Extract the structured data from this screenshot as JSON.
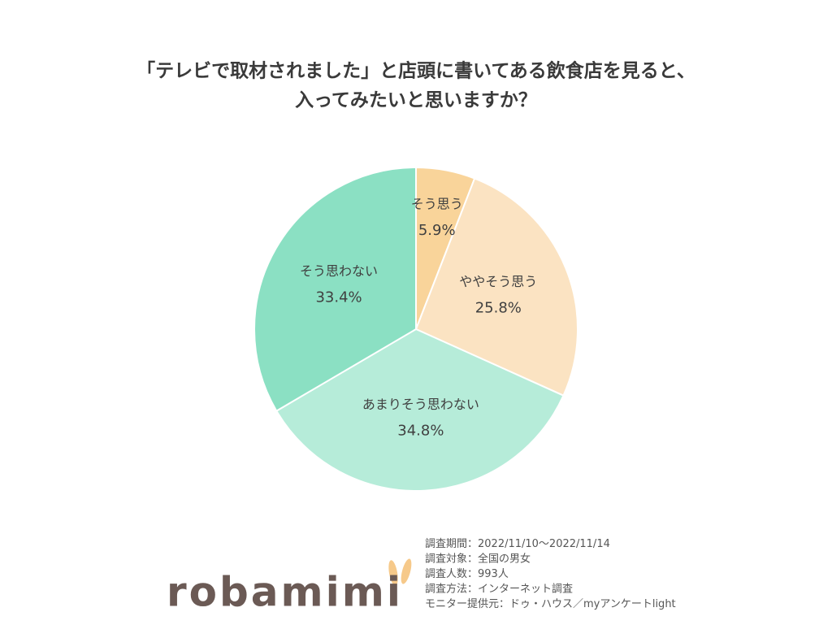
{
  "chart_data": {
    "type": "pie",
    "title": [
      "「テレビで取材されました」と店頭に書いてある飲食店を見ると、",
      "入ってみたいと思いますか？"
    ],
    "categories": [
      "そう思う",
      "ややそう思う",
      "あまりそう思わない",
      "そう思わない"
    ],
    "values": [
      5.9,
      25.8,
      34.8,
      33.4
    ],
    "value_labels": [
      "5.9%",
      "25.8%",
      "34.8%",
      "33.4%"
    ],
    "colors": [
      "#f9d49a",
      "#fbe3c2",
      "#b6ecd9",
      "#8be0c3"
    ]
  },
  "notes": [
    "調査期間：2022/11/10〜2022/11/14",
    "調査対象：全国の男女",
    "調査人数：993人",
    "調査方法：インターネット調査",
    "モニター提供元：ドゥ・ハウス／myアンケートlight"
  ],
  "logo": "robamimi"
}
